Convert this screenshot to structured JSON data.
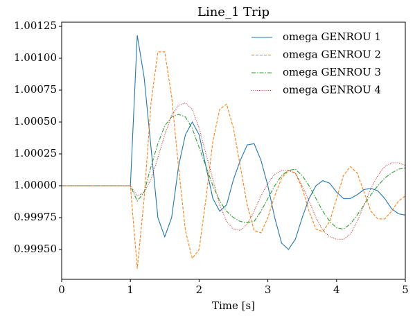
{
  "chart_data": {
    "type": "line",
    "title": "Line_1 Trip",
    "x_label": "Time [s]",
    "x": [
      0,
      0.5,
      1.0,
      1.1,
      1.2,
      1.3,
      1.4,
      1.5,
      1.6,
      1.7,
      1.8,
      1.9,
      2.0,
      2.1,
      2.2,
      2.3,
      2.4,
      2.5,
      2.6,
      2.7,
      2.8,
      2.9,
      3.0,
      3.1,
      3.2,
      3.3,
      3.4,
      3.5,
      3.6,
      3.7,
      3.8,
      3.9,
      4.0,
      4.1,
      4.2,
      4.3,
      4.4,
      4.5,
      4.6,
      4.7,
      4.8,
      4.9,
      5.0
    ],
    "series": [
      {
        "name": "omega GENROU 1",
        "color": "#1f77b4",
        "dash": "",
        "values": [
          1.0,
          1.0,
          1.0,
          1.00118,
          1.00085,
          1.0003,
          0.99975,
          0.9996,
          0.99975,
          1.00015,
          1.0004,
          1.0005,
          1.0004,
          1.00015,
          0.9999,
          0.9998,
          0.99985,
          1.00005,
          1.0002,
          1.00032,
          1.00033,
          1.0002,
          1.0,
          0.99975,
          0.99955,
          0.9995,
          0.99958,
          0.99975,
          0.9999,
          1.0,
          1.00004,
          1.00002,
          0.99995,
          0.9999,
          0.9999,
          0.99993,
          0.99997,
          0.99998,
          0.99996,
          0.9999,
          0.99982,
          0.99978,
          0.99977
        ]
      },
      {
        "name": "omega GENROU 2",
        "color": "#ff7f0e",
        "dash": "4,2",
        "values": [
          1.0,
          1.0,
          1.0,
          0.99935,
          0.9999,
          1.00065,
          1.00105,
          1.00105,
          1.0007,
          1.00015,
          0.99965,
          0.99943,
          0.9995,
          0.9999,
          1.00035,
          1.0006,
          1.00064,
          1.00045,
          1.00015,
          0.99985,
          0.99965,
          0.99963,
          0.99975,
          0.99992,
          1.00006,
          1.00012,
          1.0001,
          0.99998,
          0.9998,
          0.99966,
          0.99964,
          0.99972,
          0.9999,
          1.00008,
          1.00015,
          1.0001,
          0.99995,
          0.9998,
          0.99974,
          0.99974,
          0.9998,
          0.99988,
          0.99992
        ]
      },
      {
        "name": "omega GENROU 3",
        "color": "#2ca02c",
        "dash": "6,2,1.5,2",
        "values": [
          1.0,
          1.0,
          1.0,
          0.99988,
          0.99995,
          1.00015,
          1.00033,
          1.00047,
          1.00054,
          1.00056,
          1.00054,
          1.00045,
          1.0003,
          1.00015,
          1.0,
          0.99988,
          0.9998,
          0.99975,
          0.99972,
          0.99971,
          0.99972,
          0.9998,
          0.9999,
          1.0,
          1.00008,
          1.00012,
          1.00013,
          1.00008,
          1.0,
          0.9999,
          0.9998,
          0.99972,
          0.99967,
          0.99966,
          0.9997,
          0.99977,
          0.99985,
          0.99993,
          1.0,
          1.00006,
          1.0001,
          1.00013,
          1.00014
        ]
      },
      {
        "name": "omega GENROU 4",
        "color": "#d62728",
        "dash": "1,1.7",
        "values": [
          1.0,
          1.0,
          1.0,
          0.99992,
          0.99995,
          1.00005,
          1.00022,
          1.0004,
          1.00055,
          1.00063,
          1.00065,
          1.0006,
          1.00045,
          1.00025,
          1.00005,
          0.99985,
          0.99972,
          0.99966,
          0.99965,
          0.9997,
          0.9998,
          0.99992,
          1.00002,
          1.00009,
          1.00012,
          1.00012,
          1.0001,
          1.0,
          0.99988,
          0.99975,
          0.99965,
          0.9996,
          0.99958,
          0.99958,
          0.99962,
          0.99972,
          0.99985,
          0.99998,
          1.00008,
          1.00015,
          1.00018,
          1.00018,
          1.00016
        ]
      }
    ],
    "xlim": [
      0,
      5
    ],
    "xticks": [
      0,
      1,
      2,
      3,
      4,
      5
    ],
    "ylim": [
      0.999266,
      1.001283
    ],
    "yticks": [
      {
        "value": 0.9995,
        "label": "0.99950"
      },
      0.99975,
      {
        "value": 1.0,
        "label": "1.00000"
      },
      1.00025,
      {
        "value": 1.0005,
        "label": "1.00050"
      },
      1.00075,
      {
        "value": 1.001,
        "label": "1.00100"
      },
      1.00125
    ],
    "legend": "upper right",
    "grid": false
  }
}
